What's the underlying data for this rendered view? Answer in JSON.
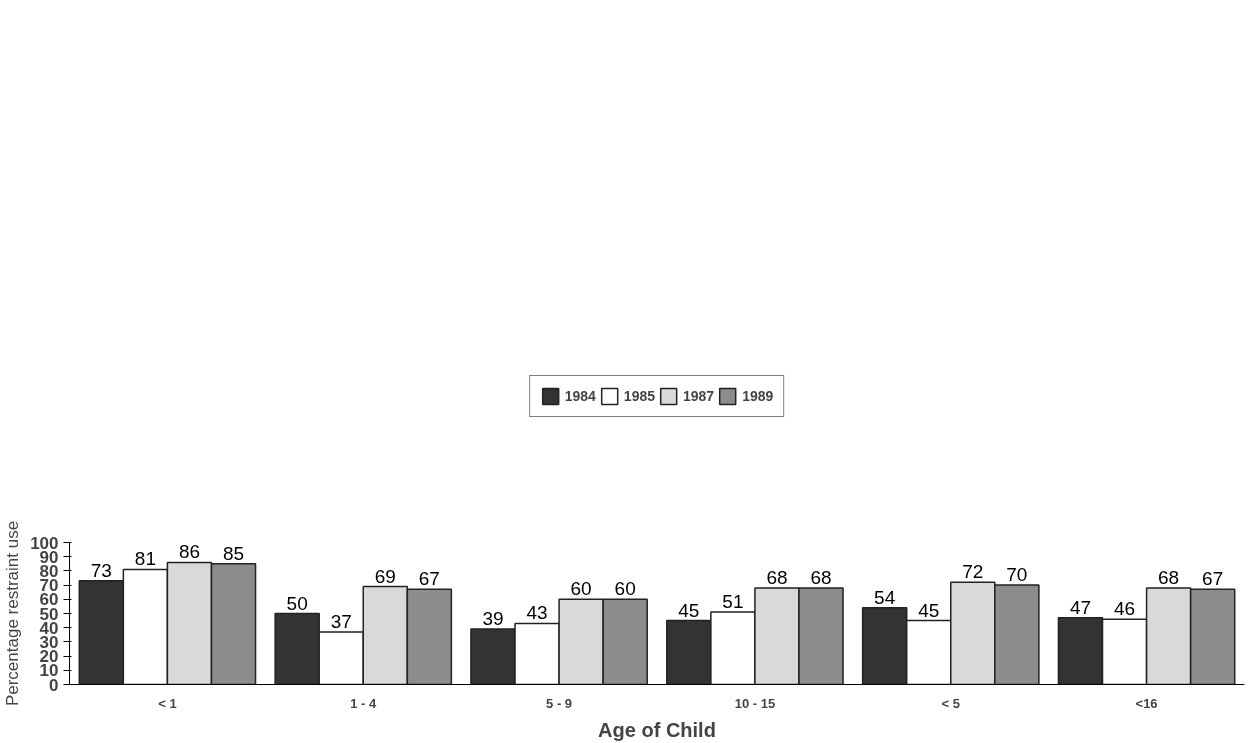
{
  "chart_data": {
    "type": "bar",
    "xlabel": "Age of Child",
    "ylabel": "Percentage restraint use",
    "categories": [
      "< 1",
      "1 - 4",
      "5 - 9",
      "10 - 15",
      "< 5",
      "<16"
    ],
    "series": [
      {
        "name": "1984",
        "color": "#333333",
        "values": [
          73,
          50,
          39,
          45,
          54,
          47
        ]
      },
      {
        "name": "1985",
        "color": "#ffffff",
        "values": [
          81,
          37,
          43,
          51,
          45,
          46
        ]
      },
      {
        "name": "1987",
        "color": "#d9d9d9",
        "values": [
          86,
          69,
          60,
          68,
          72,
          68
        ]
      },
      {
        "name": "1989",
        "color": "#8c8c8c",
        "values": [
          85,
          67,
          60,
          68,
          70,
          67
        ]
      }
    ],
    "ylim": [
      0,
      100
    ],
    "yticks": [
      0,
      10,
      20,
      30,
      40,
      50,
      60,
      70,
      80,
      90,
      100
    ],
    "data_labels": true,
    "grid": false,
    "legend": "top"
  }
}
